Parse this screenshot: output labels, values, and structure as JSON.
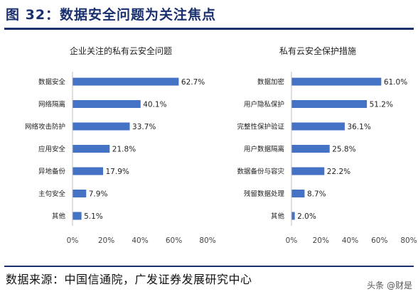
{
  "header": {
    "figure_label": "图 32：数据安全问题为关注焦点"
  },
  "footer": {
    "source": "数据来源：中国信通院，广发证券发展研究中心",
    "watermark": "头条 @财是"
  },
  "colors": {
    "bar": "#4472c4",
    "rule": "#1a2f6e"
  },
  "chart_data": [
    {
      "type": "bar",
      "orientation": "horizontal",
      "title": "企业关注的私有云安全问题",
      "categories": [
        "数据安全",
        "网络隔离",
        "网络攻击防护",
        "应用安全",
        "异地备份",
        "主句安全",
        "其他"
      ],
      "values": [
        62.7,
        40.1,
        33.7,
        21.8,
        17.9,
        7.9,
        5.1
      ],
      "value_labels": [
        "62.7%",
        "40.1%",
        "33.7%",
        "21.8%",
        "17.9%",
        "7.9%",
        "5.1%"
      ],
      "xlim": [
        0,
        80
      ],
      "ticks": [
        "0%",
        "20%",
        "40%",
        "60%",
        "80%"
      ],
      "grid": false
    },
    {
      "type": "bar",
      "orientation": "horizontal",
      "title": "私有云安全保护措施",
      "categories": [
        "数据加密",
        "用户隐私保护",
        "完整性保护验证",
        "用户数据隔离",
        "数据备份与容灾",
        "残留数据处理",
        "其他"
      ],
      "values": [
        61.0,
        51.2,
        36.1,
        25.8,
        22.2,
        8.7,
        2.0
      ],
      "value_labels": [
        "61.0%",
        "51.2%",
        "36.1%",
        "25.8%",
        "22.2%",
        "8.7%",
        "2.0%"
      ],
      "xlim": [
        0,
        80
      ],
      "ticks": [
        "0%",
        "20%",
        "40%",
        "60%",
        "80%"
      ],
      "grid": false
    }
  ]
}
